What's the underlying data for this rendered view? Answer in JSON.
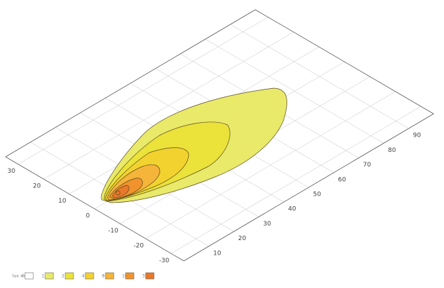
{
  "chart_data": {
    "type": "contour",
    "xlim": [
      0,
      100
    ],
    "ylim": [
      -35,
      35
    ],
    "xticks": [
      10,
      20,
      30,
      40,
      50,
      60,
      70,
      80,
      90
    ],
    "yticks": [
      -30,
      -20,
      -10,
      0,
      10,
      20,
      30
    ],
    "grid": true,
    "legend_title": "lux >=",
    "levels": [
      0,
      1,
      2,
      4,
      8,
      16,
      32
    ],
    "colors": [
      "#ffffff",
      "#e9e96a",
      "#ebe23a",
      "#f2d22e",
      "#f5b43a",
      "#f0932c",
      "#e8782a"
    ]
  }
}
